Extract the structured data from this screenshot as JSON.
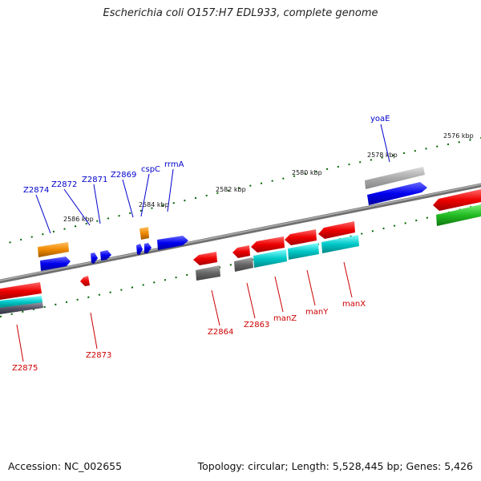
{
  "title": "Escherichia coli O157:H7 EDL933, complete genome",
  "footer": {
    "accession": "Accession: NC_002655",
    "stats": "Topology: circular; Length: 5,528,445 bp; Genes: 5,426"
  },
  "scale_labels": [
    "2576 kbp",
    "2578 kbp",
    "2580 kbp",
    "2582 kbp",
    "2584 kbp",
    "2586 kbp"
  ],
  "gene_labels_top": [
    "yoaE",
    "rrmA",
    "cspC",
    "Z2869",
    "Z2871",
    "Z2872",
    "Z2874"
  ],
  "gene_labels_bottom": [
    "Z2864",
    "Z2863",
    "manZ",
    "manY",
    "manX",
    "Z2873",
    "Z2875"
  ],
  "colors": {
    "backbone": "#808080",
    "forward": "#0000ee",
    "reverse": "#ee0000",
    "cyan": "#00c8c8",
    "gray": "#707070",
    "orange": "#ee8800",
    "green": "#22bb22",
    "tick": "#006600"
  }
}
